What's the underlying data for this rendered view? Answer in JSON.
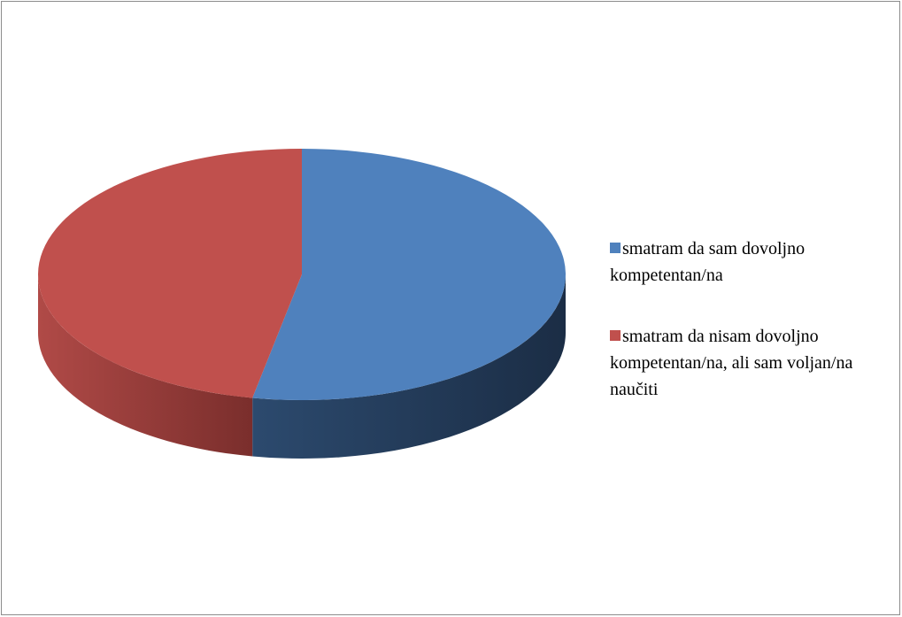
{
  "chart_data": {
    "type": "pie",
    "categories": [
      "smatram da sam dovoljno kompetentan/na",
      "smatram da nisam dovoljno kompetentan/na, ali sam voljan/na naučiti"
    ],
    "values": [
      53,
      47
    ],
    "colors": [
      "#4f81bd",
      "#c0504d"
    ],
    "side_colors": [
      [
        "#2c4a6e",
        "#1b2d45"
      ],
      [
        "#b04a47",
        "#7a2e2c"
      ]
    ],
    "legend": "right"
  }
}
